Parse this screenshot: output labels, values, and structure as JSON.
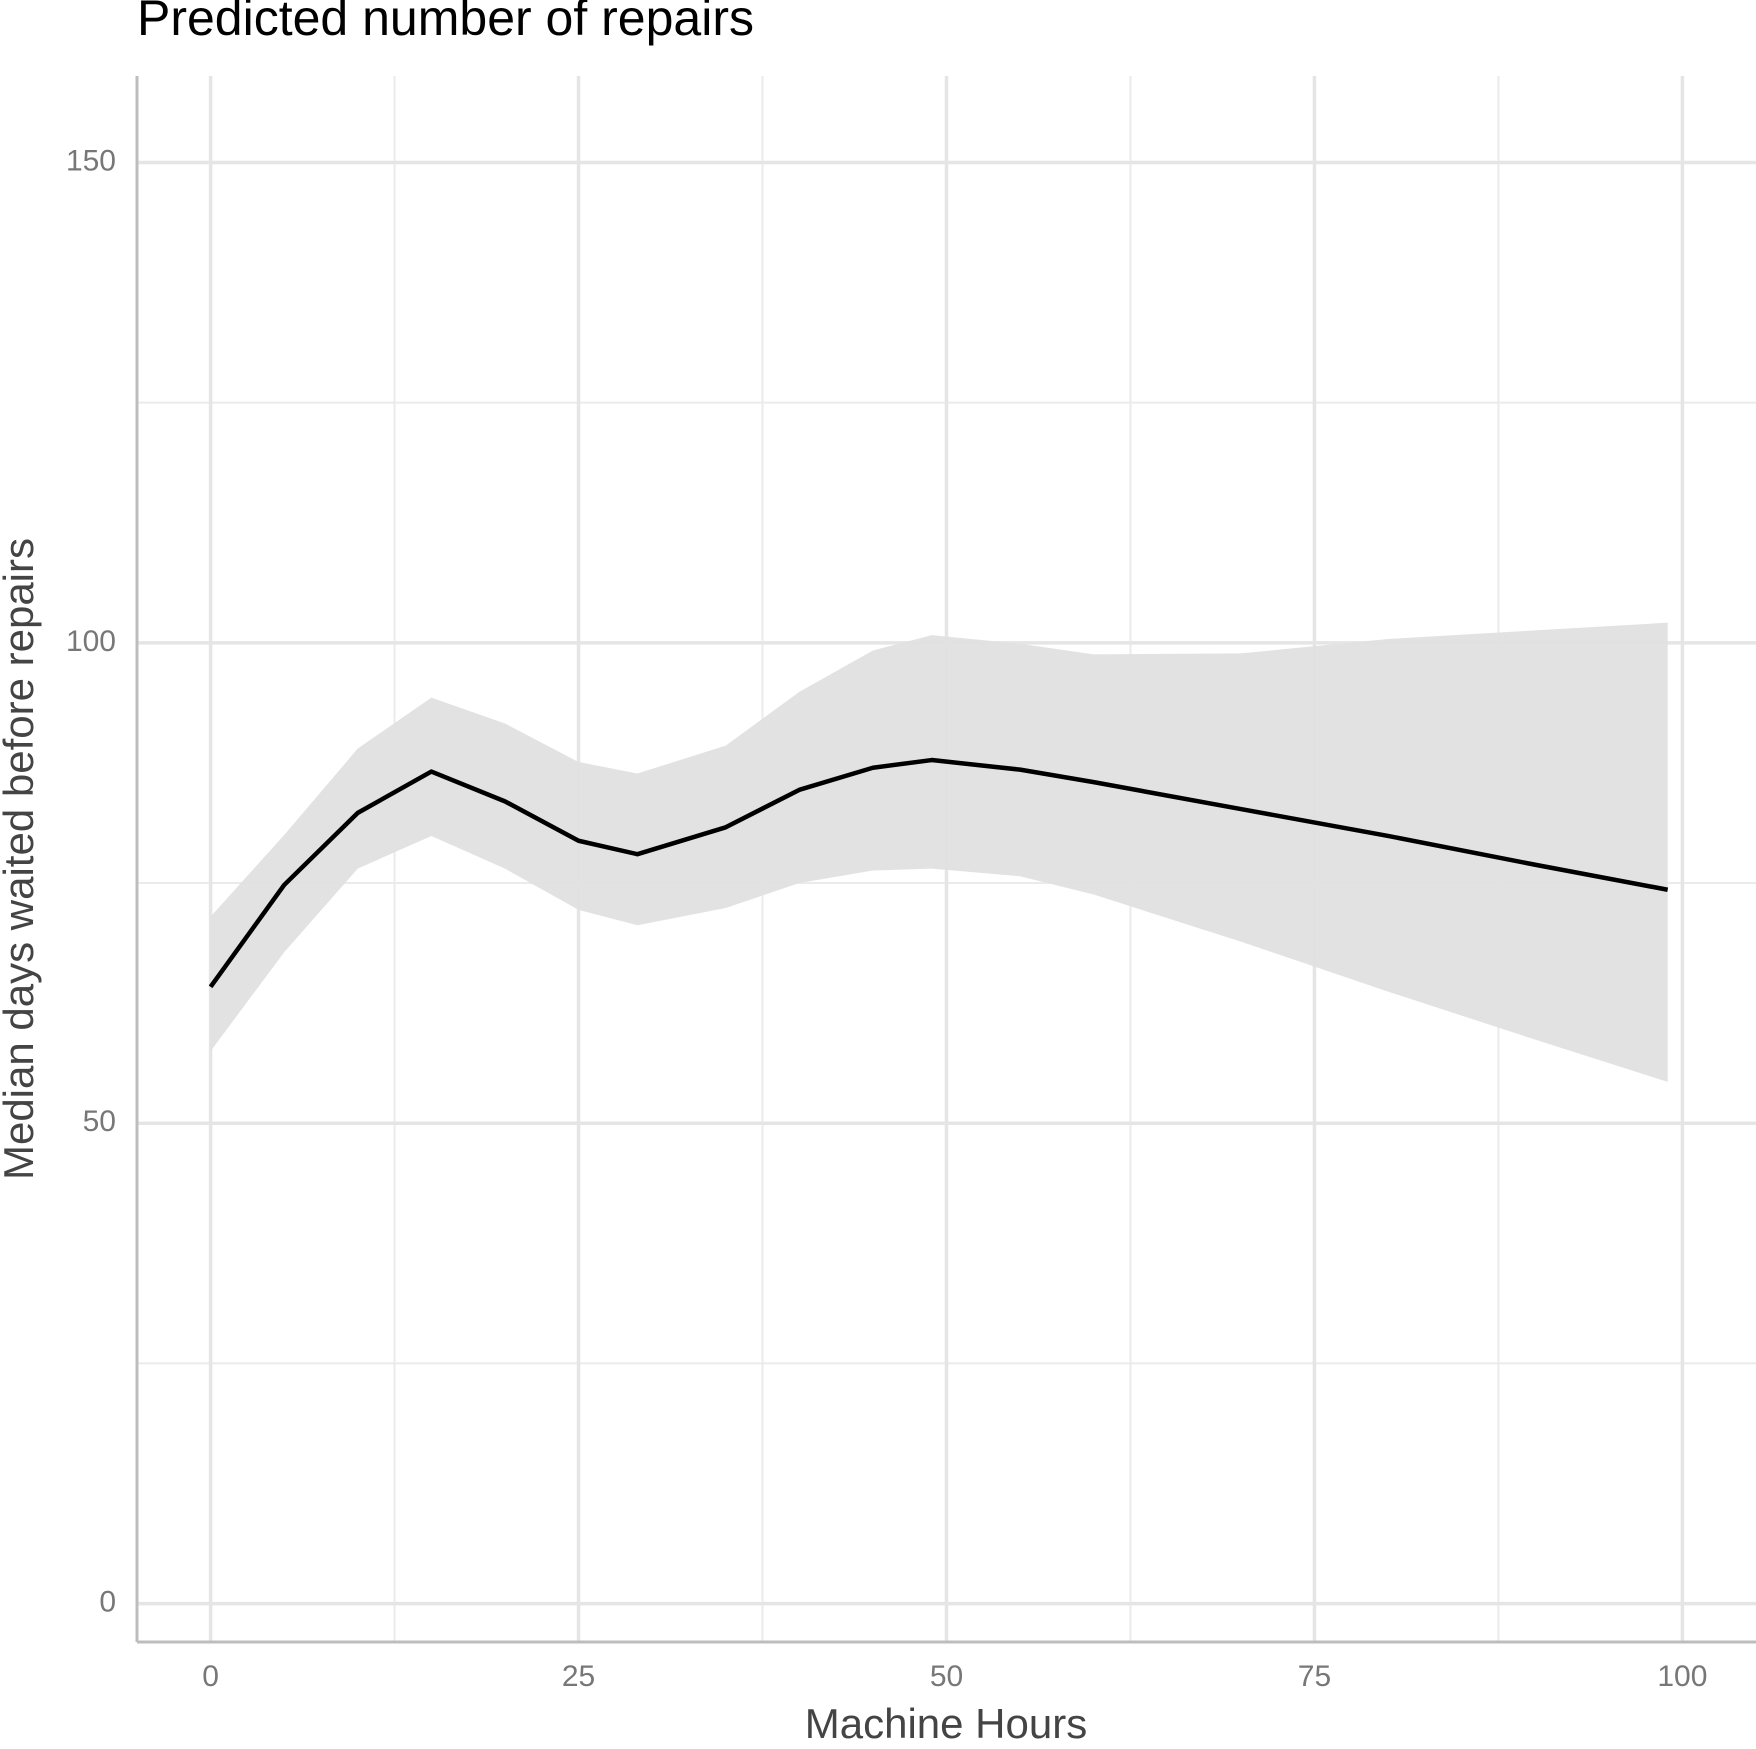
{
  "chart_data": {
    "type": "line",
    "title": "Predicted number of repairs",
    "x_label": "Machine Hours",
    "y_label": "Median days waited before repairs",
    "x": [
      0,
      5,
      10,
      15,
      20,
      25,
      29,
      35,
      40,
      45,
      49,
      55,
      60,
      70,
      80,
      90,
      99
    ],
    "series": [
      {
        "color": "#000000",
        "values": [
          64.2,
          74.8,
          82.3,
          86.6,
          83.5,
          79.4,
          78,
          80.8,
          84.7,
          87,
          87.8,
          86.8,
          85.5,
          82.7,
          79.9,
          76.9,
          74.3
        ],
        "upper": [
          71.5,
          80,
          89,
          94.3,
          91.6,
          87.6,
          86.4,
          89.3,
          94.9,
          99.2,
          100.8,
          99.9,
          98.8,
          98.9,
          100.4,
          101.3,
          102.1
        ],
        "lower": [
          57.5,
          67.8,
          76.5,
          79.9,
          76.5,
          72.2,
          70.6,
          72.4,
          75,
          76.3,
          76.5,
          75.7,
          73.8,
          68.9,
          63.7,
          58.7,
          54.3
        ],
        "band_color": "#e0e0e0"
      }
    ],
    "xlim": [
      -5,
      105
    ],
    "ylim": [
      -4,
      159
    ],
    "xticks": [
      0,
      25,
      50,
      75,
      100
    ],
    "yticks": [
      0,
      50,
      100,
      150
    ],
    "x_minor_grid": [
      12.5,
      37.5,
      62.5,
      87.5
    ],
    "y_minor_grid": [
      25,
      75,
      125
    ],
    "grid": true
  }
}
